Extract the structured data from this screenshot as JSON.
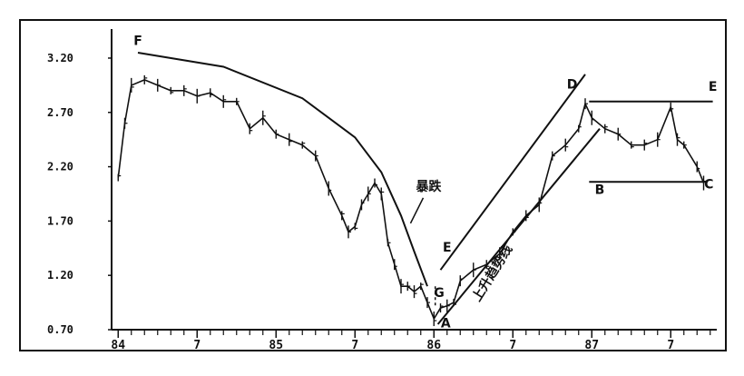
{
  "chart_data": {
    "type": "line",
    "title": "",
    "xlabel": "",
    "ylabel": "",
    "ylim": [
      0.7,
      3.3
    ],
    "y_ticks": [
      "3.20",
      "2.70",
      "2.20",
      "1.70",
      "1.20",
      "0.70"
    ],
    "x_tick_labels": [
      "84",
      "7",
      "85",
      "7",
      "86",
      "7",
      "87",
      "7"
    ],
    "x_tick_months": [
      0,
      6,
      12,
      18,
      24,
      30,
      36,
      42
    ],
    "x_range_months": [
      -0.5,
      45.5
    ],
    "grid": false,
    "series": [
      {
        "values": [
          {
            "x": 0,
            "y": 2.1
          },
          {
            "x": 0.5,
            "y": 2.6
          },
          {
            "x": 1,
            "y": 2.95
          },
          {
            "x": 2,
            "y": 3.0
          },
          {
            "x": 3,
            "y": 2.95
          },
          {
            "x": 4,
            "y": 2.9
          },
          {
            "x": 5,
            "y": 2.9
          },
          {
            "x": 6,
            "y": 2.85
          },
          {
            "x": 7,
            "y": 2.88
          },
          {
            "x": 8,
            "y": 2.8
          },
          {
            "x": 9,
            "y": 2.8
          },
          {
            "x": 10,
            "y": 2.55
          },
          {
            "x": 11,
            "y": 2.65
          },
          {
            "x": 12,
            "y": 2.5
          },
          {
            "x": 13,
            "y": 2.45
          },
          {
            "x": 14,
            "y": 2.4
          },
          {
            "x": 15,
            "y": 2.3
          },
          {
            "x": 16,
            "y": 2.0
          },
          {
            "x": 17,
            "y": 1.75
          },
          {
            "x": 17.5,
            "y": 1.6
          },
          {
            "x": 18,
            "y": 1.65
          },
          {
            "x": 18.5,
            "y": 1.85
          },
          {
            "x": 19,
            "y": 1.95
          },
          {
            "x": 19.5,
            "y": 2.05
          },
          {
            "x": 20,
            "y": 1.95
          },
          {
            "x": 20.5,
            "y": 1.5
          },
          {
            "x": 21,
            "y": 1.3
          },
          {
            "x": 21.5,
            "y": 1.1
          },
          {
            "x": 22,
            "y": 1.1
          },
          {
            "x": 22.5,
            "y": 1.05
          },
          {
            "x": 23,
            "y": 1.1
          },
          {
            "x": 23.5,
            "y": 0.95
          },
          {
            "x": 24,
            "y": 0.8
          },
          {
            "x": 24.5,
            "y": 0.9
          },
          {
            "x": 25,
            "y": 0.92
          },
          {
            "x": 25.5,
            "y": 0.95
          },
          {
            "x": 26,
            "y": 1.15
          },
          {
            "x": 27,
            "y": 1.25
          },
          {
            "x": 28,
            "y": 1.3
          },
          {
            "x": 29,
            "y": 1.4
          },
          {
            "x": 30,
            "y": 1.6
          },
          {
            "x": 31,
            "y": 1.75
          },
          {
            "x": 32,
            "y": 1.85
          },
          {
            "x": 33,
            "y": 2.3
          },
          {
            "x": 34,
            "y": 2.4
          },
          {
            "x": 35,
            "y": 2.55
          },
          {
            "x": 35.5,
            "y": 2.78
          },
          {
            "x": 36,
            "y": 2.65
          },
          {
            "x": 37,
            "y": 2.55
          },
          {
            "x": 38,
            "y": 2.5
          },
          {
            "x": 39,
            "y": 2.4
          },
          {
            "x": 40,
            "y": 2.4
          },
          {
            "x": 41,
            "y": 2.45
          },
          {
            "x": 42,
            "y": 2.75
          },
          {
            "x": 42.5,
            "y": 2.45
          },
          {
            "x": 43,
            "y": 2.4
          },
          {
            "x": 44,
            "y": 2.2
          },
          {
            "x": 44.5,
            "y": 2.05
          }
        ]
      }
    ],
    "trendlines": [
      {
        "name": "top-curve",
        "points": [
          {
            "x": 1.5,
            "y": 3.25
          },
          {
            "x": 8,
            "y": 3.12
          },
          {
            "x": 14,
            "y": 2.83
          },
          {
            "x": 18,
            "y": 2.47
          },
          {
            "x": 20,
            "y": 2.15
          },
          {
            "x": 21.5,
            "y": 1.75
          },
          {
            "x": 22.5,
            "y": 1.42
          },
          {
            "x": 23.5,
            "y": 1.1
          }
        ]
      },
      {
        "name": "rising-upper",
        "points": [
          {
            "x": 24.5,
            "y": 1.25
          },
          {
            "x": 35.5,
            "y": 3.05
          }
        ]
      },
      {
        "name": "rising-lower",
        "points": [
          {
            "x": 24.3,
            "y": 0.75
          },
          {
            "x": 36.6,
            "y": 2.55
          }
        ]
      },
      {
        "name": "upper-box-line",
        "points": [
          {
            "x": 35.8,
            "y": 2.8
          },
          {
            "x": 45.2,
            "y": 2.8
          }
        ]
      },
      {
        "name": "lower-box-line",
        "points": [
          {
            "x": 35.8,
            "y": 2.06
          },
          {
            "x": 44.8,
            "y": 2.06
          }
        ]
      },
      {
        "name": "dash-vertical",
        "points": [
          {
            "x": 24.1,
            "y": 1.1
          },
          {
            "x": 24.1,
            "y": 0.9
          }
        ]
      }
    ],
    "annotations": [
      {
        "id": "F-top",
        "text": "F",
        "x": 1.5,
        "y": 3.32
      },
      {
        "id": "E-mid",
        "text": "E",
        "x": 25.0,
        "y": 1.42
      },
      {
        "id": "G",
        "text": "G",
        "x": 24.4,
        "y": 1.0
      },
      {
        "id": "A",
        "text": "A",
        "x": 24.9,
        "y": 0.72
      },
      {
        "id": "D",
        "text": "D",
        "x": 34.5,
        "y": 2.92
      },
      {
        "id": "B",
        "text": "B",
        "x": 36.6,
        "y": 1.95
      },
      {
        "id": "C",
        "text": "C",
        "x": 44.9,
        "y": 2.0
      },
      {
        "id": "E-right",
        "text": "E",
        "x": 45.2,
        "y": 2.9
      },
      {
        "id": "crash-label",
        "text": "暴跌",
        "x": 23.6,
        "y": 1.98
      },
      {
        "id": "uptrend-label",
        "text": "上升趋势线",
        "x": 28.7,
        "y": 1.2
      }
    ]
  }
}
